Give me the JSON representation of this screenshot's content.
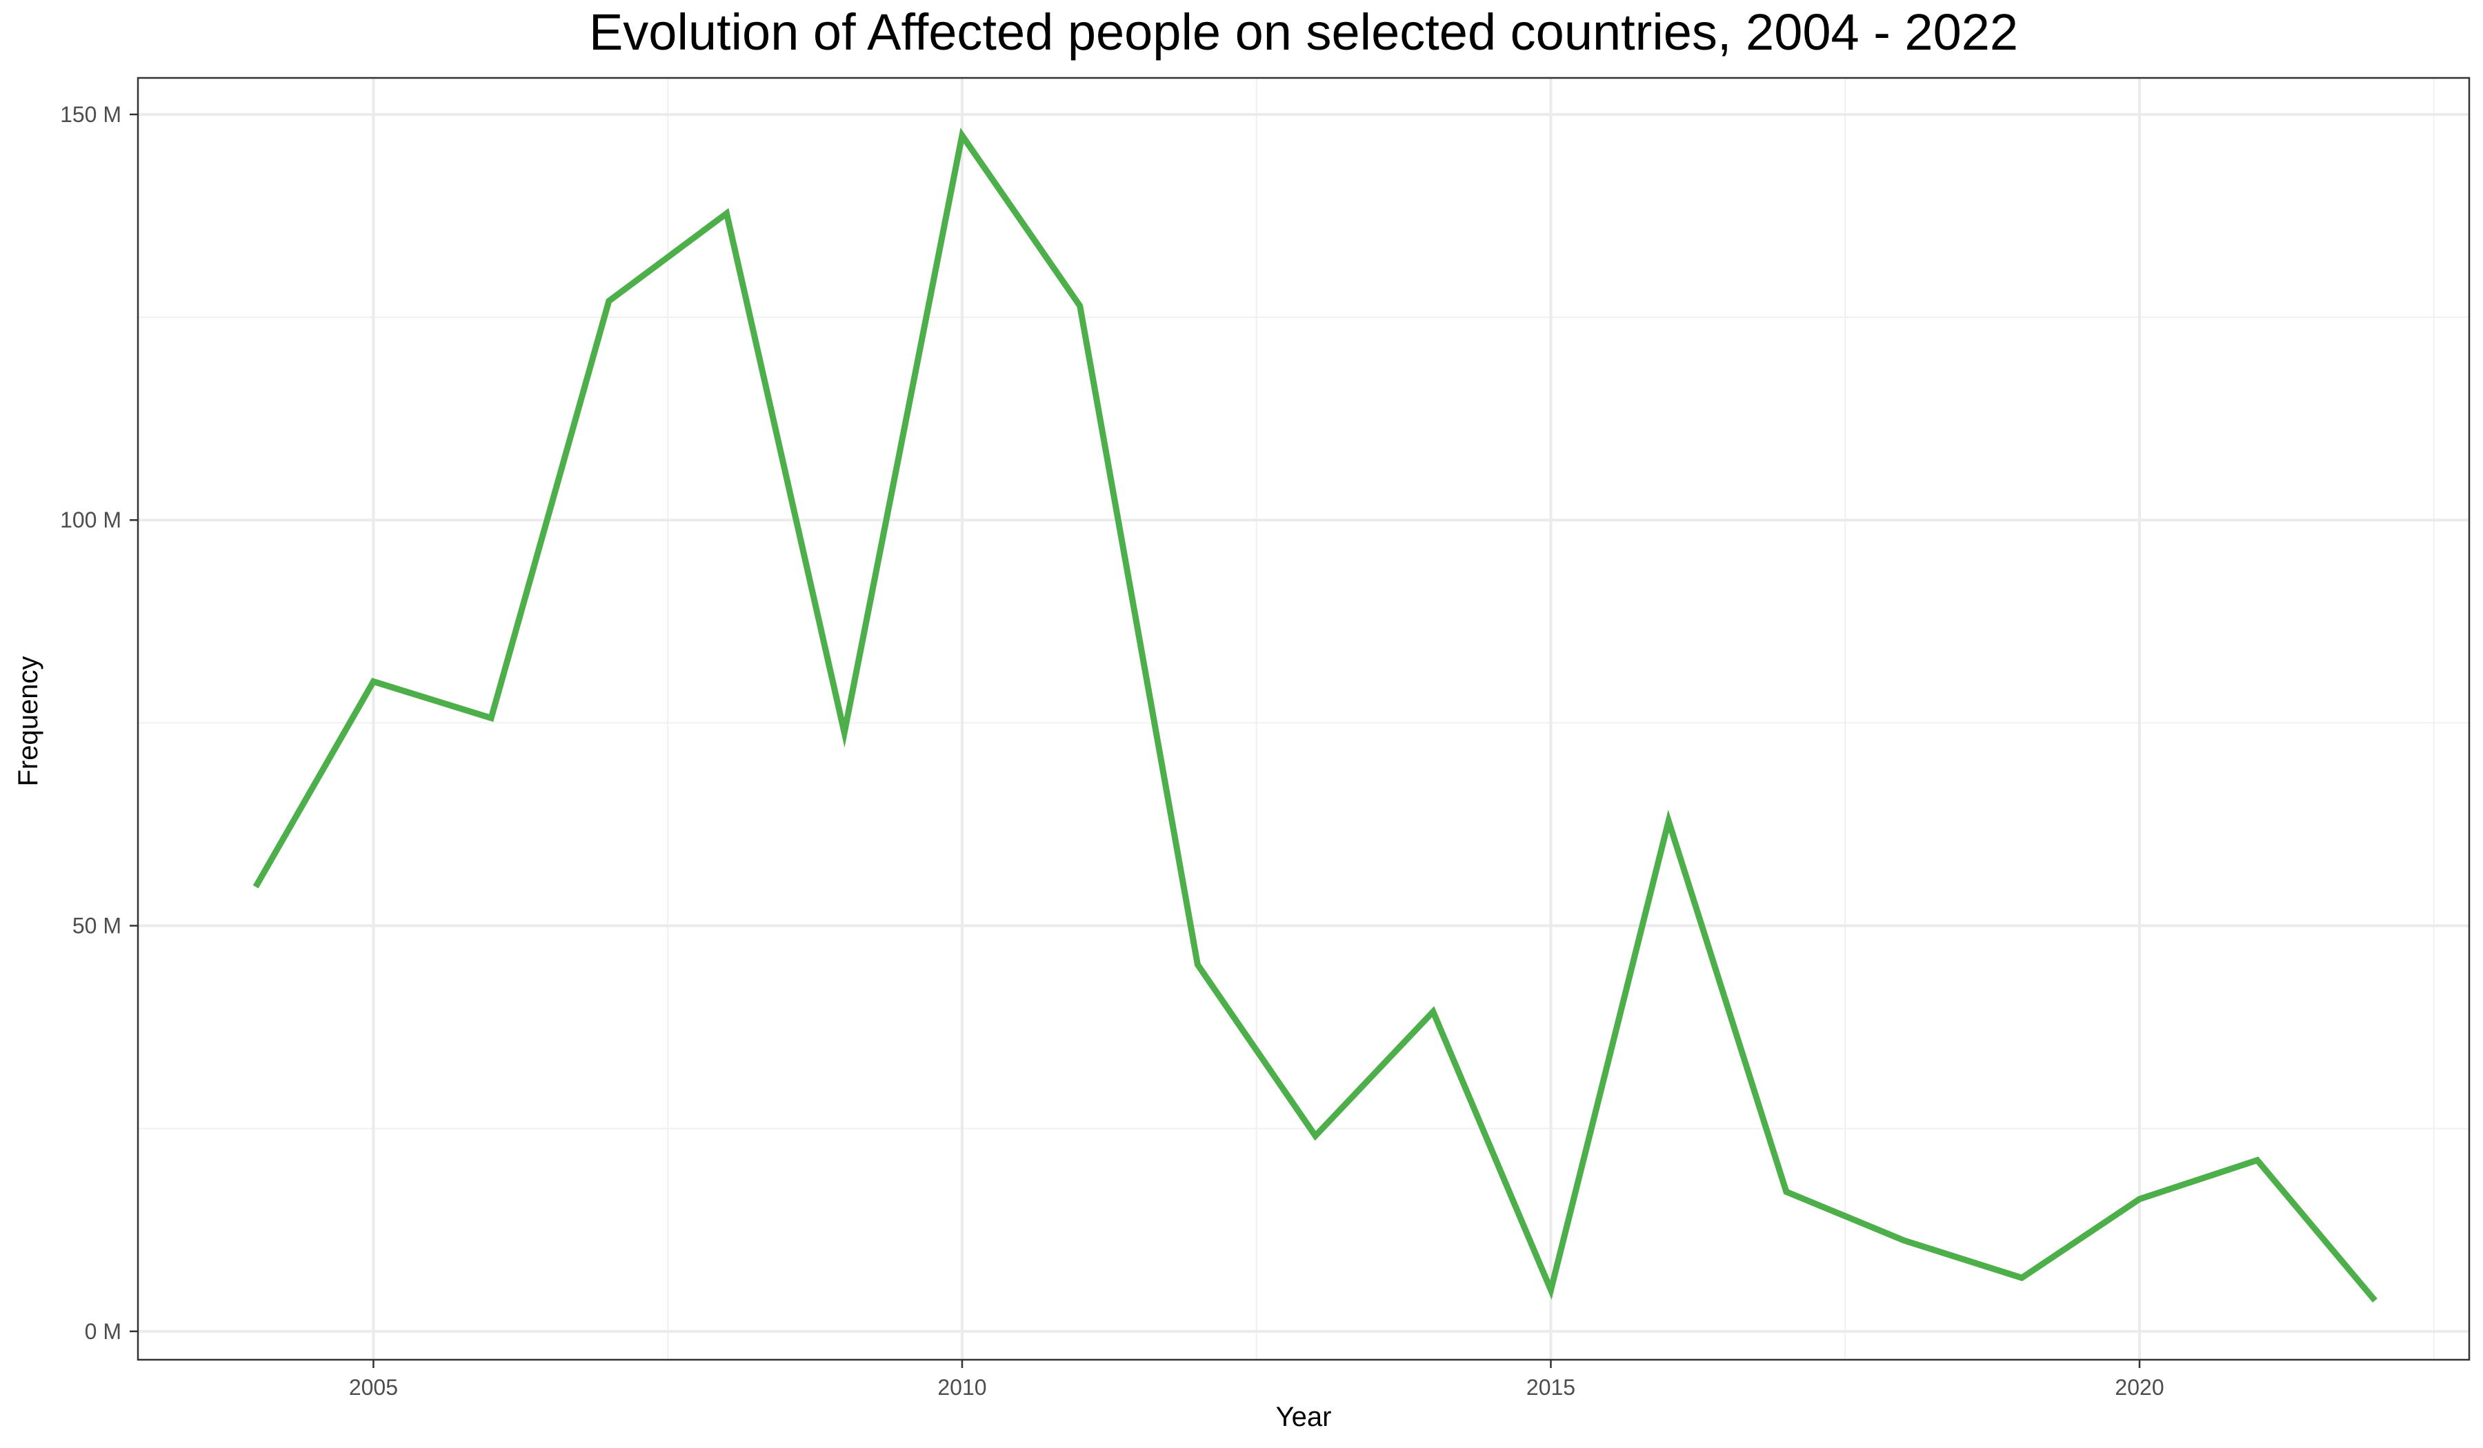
{
  "chart_data": {
    "type": "line",
    "title": "Evolution of Affected people on selected countries, 2004 - 2022",
    "xlabel": "Year",
    "ylabel": "Frequency",
    "xlim": [
      2003,
      2022.8
    ],
    "ylim": [
      -3.5,
      154.5
    ],
    "x_ticks": [
      2005,
      2010,
      2015,
      2020
    ],
    "x_tick_labels": [
      "2005",
      "2010",
      "2015",
      "2020"
    ],
    "x_minor_ticks": [
      2007.5,
      2012.5,
      2017.5,
      2022.5
    ],
    "y_ticks": [
      0,
      50,
      100,
      150
    ],
    "y_tick_labels": [
      "0 M",
      "50 M",
      "100 M",
      "150 M"
    ],
    "y_minor_ticks": [
      25,
      75,
      125
    ],
    "y_unit": "millions",
    "grid": true,
    "legend": "none",
    "series": [
      {
        "color": "#4daf4a",
        "x": [
          2004,
          2005,
          2006,
          2007,
          2008,
          2009,
          2010,
          2011,
          2012,
          2013,
          2014,
          2015,
          2016,
          2017,
          2018,
          2019,
          2020,
          2021,
          2022
        ],
        "y": [
          54.8,
          80.1,
          75.6,
          127.0,
          137.8,
          73.8,
          147.4,
          126.4,
          45.2,
          24.1,
          39.4,
          5.1,
          62.9,
          17.2,
          11.2,
          6.6,
          16.3,
          21.1,
          3.8
        ]
      }
    ]
  }
}
